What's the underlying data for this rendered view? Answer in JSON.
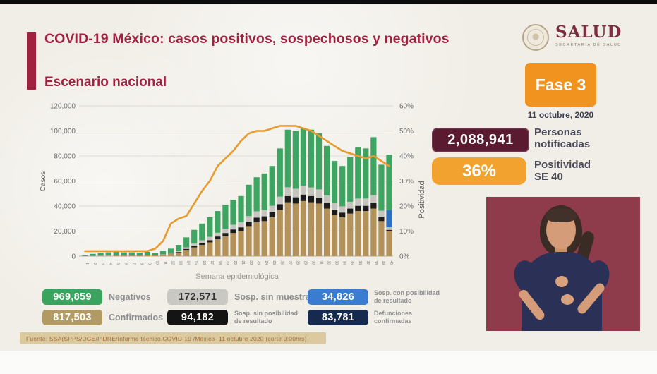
{
  "header": {
    "title": "COVID-19 México: casos positivos, sospechosos y negativos",
    "subtitle": "Escenario nacional",
    "accent_color": "#9f2241"
  },
  "logo": {
    "name": "SALUD",
    "subtitle": "SECRETARÍA DE SALUD"
  },
  "phase": {
    "label": "Fase 3",
    "date": "11 octubre, 2020",
    "badge_color": "#f0941f"
  },
  "kpis": {
    "notified": {
      "value": "2,088,941",
      "label_line1": "Personas",
      "label_line2": "notificadas",
      "badge_color": "#5a1b31"
    },
    "positivity": {
      "value": "36%",
      "label_line1": "Positividad",
      "label_line2": "SE 40",
      "badge_color": "#f2a22e"
    }
  },
  "chart_data": {
    "type": "bar",
    "subtype": "stacked-bars-with-line",
    "x_label": "Semana epidemiológica",
    "y_left_label": "Casos",
    "y_right_label": "Positividad",
    "y_left_ticks": [
      "0",
      "20,000",
      "40,000",
      "60,000",
      "80,000",
      "100,000",
      "120,000"
    ],
    "y_right_ticks": [
      "0%",
      "10%",
      "20%",
      "30%",
      "40%",
      "50%",
      "60%"
    ],
    "y_left_max": 120000,
    "y_right_max": 60,
    "grid": true,
    "categories": [
      1,
      2,
      3,
      4,
      5,
      6,
      7,
      8,
      9,
      10,
      11,
      12,
      13,
      14,
      15,
      16,
      17,
      18,
      19,
      20,
      21,
      22,
      23,
      24,
      25,
      26,
      27,
      28,
      29,
      30,
      31,
      32,
      33,
      34,
      35,
      36,
      37,
      38,
      39,
      40
    ],
    "series": [
      {
        "name": "Confirmados",
        "color": "#b3925a",
        "values": [
          100,
          200,
          300,
          400,
          500,
          500,
          500,
          500,
          600,
          600,
          1000,
          1800,
          3000,
          5000,
          7000,
          9000,
          11000,
          13500,
          16000,
          18500,
          20000,
          24000,
          27000,
          28000,
          31000,
          37000,
          43000,
          42000,
          44000,
          43000,
          42000,
          38000,
          33000,
          31000,
          34000,
          36000,
          36000,
          38000,
          28000,
          20000
        ]
      },
      {
        "name": "Sosp. sin posibilidad de resultado",
        "color": "#1c1c1c",
        "values": [
          20,
          30,
          40,
          50,
          60,
          60,
          60,
          60,
          80,
          80,
          150,
          250,
          400,
          800,
          1200,
          1500,
          1800,
          2200,
          2500,
          2800,
          3000,
          3500,
          3800,
          3800,
          4000,
          4500,
          5000,
          5000,
          5200,
          5000,
          4800,
          4500,
          4000,
          3800,
          4000,
          4200,
          4200,
          4500,
          3500,
          1000
        ]
      },
      {
        "name": "Sosp. sin muestra",
        "color": "#c6c4be",
        "values": [
          30,
          70,
          100,
          150,
          140,
          140,
          140,
          140,
          120,
          120,
          250,
          450,
          700,
          1200,
          1800,
          2200,
          2600,
          3000,
          3400,
          3800,
          4000,
          4500,
          5000,
          5000,
          5200,
          6000,
          7000,
          6800,
          7000,
          6800,
          6500,
          6000,
          5200,
          5000,
          5400,
          5800,
          5800,
          6200,
          4800,
          2000
        ]
      },
      {
        "name": "Sosp. con posibilidad de resultado",
        "color": "#2e6fc0",
        "values": [
          0,
          0,
          0,
          0,
          0,
          0,
          0,
          0,
          0,
          0,
          0,
          0,
          0,
          0,
          0,
          0,
          0,
          0,
          0,
          0,
          0,
          0,
          0,
          0,
          0,
          0,
          0,
          0,
          0,
          0,
          0,
          0,
          0,
          0,
          0,
          0,
          0,
          0,
          0,
          14000
        ]
      },
      {
        "name": "Negativos",
        "color": "#3ea461",
        "values": [
          550,
          1500,
          2160,
          2400,
          2700,
          2300,
          2300,
          2100,
          2600,
          1800,
          2800,
          3500,
          4900,
          8000,
          11000,
          13300,
          15600,
          17300,
          19100,
          19900,
          21000,
          25000,
          27200,
          29200,
          31800,
          38500,
          46000,
          46200,
          45800,
          46200,
          44700,
          39500,
          33800,
          32200,
          35600,
          41000,
          40000,
          46300,
          36700,
          44000
        ]
      }
    ],
    "line": {
      "name": "Positividad",
      "color": "#e59b2f",
      "values": [
        2,
        2,
        2,
        2,
        2,
        2,
        2,
        2,
        2,
        3,
        6,
        13,
        15,
        16,
        21,
        26,
        30,
        36,
        39,
        42,
        46,
        49,
        50,
        50,
        51,
        52,
        52,
        52,
        51,
        50,
        48,
        46,
        44,
        42,
        41,
        40,
        39,
        40,
        38,
        36
      ]
    }
  },
  "legend": {
    "items": [
      {
        "value": "969,859",
        "label": "Negativos",
        "color": "#3aa45f",
        "text_color": "#ffffff"
      },
      {
        "value": "172,571",
        "label": "Sosp. sin muestra",
        "color": "#c9c8c3",
        "text_color": "#333333"
      },
      {
        "value": "34,826",
        "label_line1": "Sosp. con posibilidad",
        "label_line2": "de resultado",
        "color": "#3a7dd0",
        "text_color": "#ffffff"
      },
      {
        "value": "817,503",
        "label": "Confirmados",
        "color": "#b19a63",
        "text_color": "#ffffff"
      },
      {
        "value": "94,182",
        "label_line1": "Sosp. sin posibilidad",
        "label_line2": "de resultado",
        "color": "#141414",
        "text_color": "#ffffff"
      },
      {
        "value": "83,781",
        "label_line1": "Defunciones",
        "label_line2": "confirmadas",
        "color": "#16294f",
        "text_color": "#ffffff"
      }
    ]
  },
  "footer": {
    "source": "Fuente: SSA(SPPS/DGE/InDRE/Informe técnico.COVID-19 /México- 11 octubre 2020 (corte 9:00hrs)"
  },
  "interpreter": {
    "background": "#8e3c4c"
  }
}
